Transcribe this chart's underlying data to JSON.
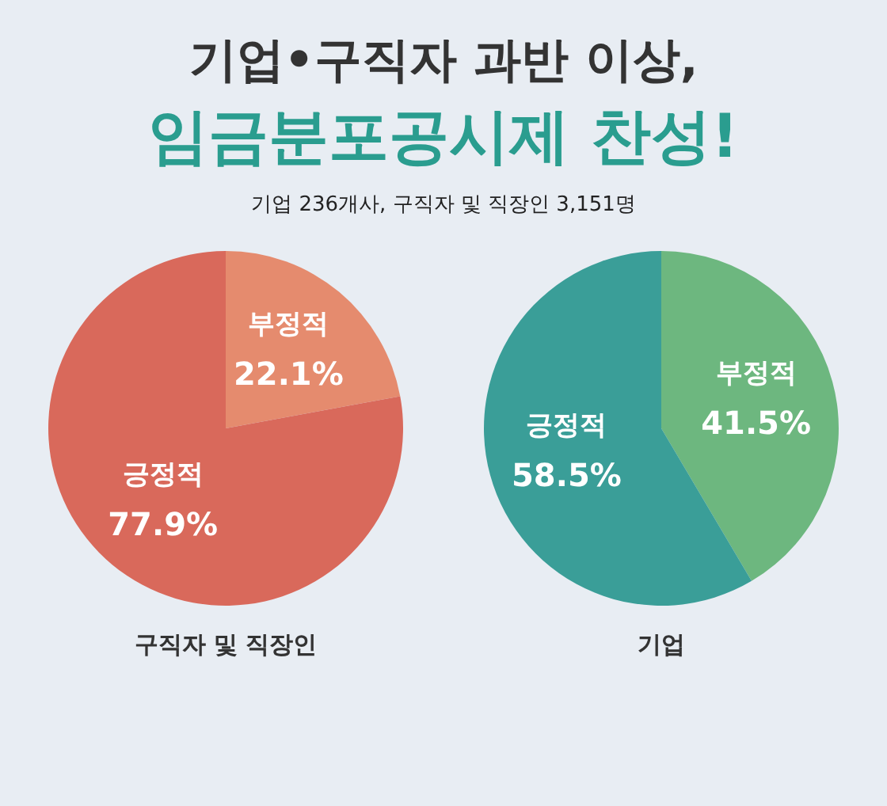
{
  "chart_data": [
    {
      "type": "pie",
      "title": "기업•구직자 과반 이상,",
      "subtitle": "임금분포공시제 찬성!",
      "annotations": [
        "기업 236개사, 구직자 및 직장인 3,151명"
      ],
      "xlabel": "구직자 및 직장인",
      "categories": [
        "부정적",
        "긍정적"
      ],
      "values": [
        22.1,
        77.9
      ],
      "value_labels": [
        "22.1%",
        "77.9%"
      ],
      "colors": [
        "#e58b6e",
        "#d9695b"
      ]
    },
    {
      "type": "pie",
      "xlabel": "기업",
      "categories": [
        "부정적",
        "긍정적"
      ],
      "values": [
        41.5,
        58.5
      ],
      "value_labels": [
        "41.5%",
        "58.5%"
      ],
      "colors": [
        "#6db77f",
        "#3a9e98"
      ]
    }
  ]
}
